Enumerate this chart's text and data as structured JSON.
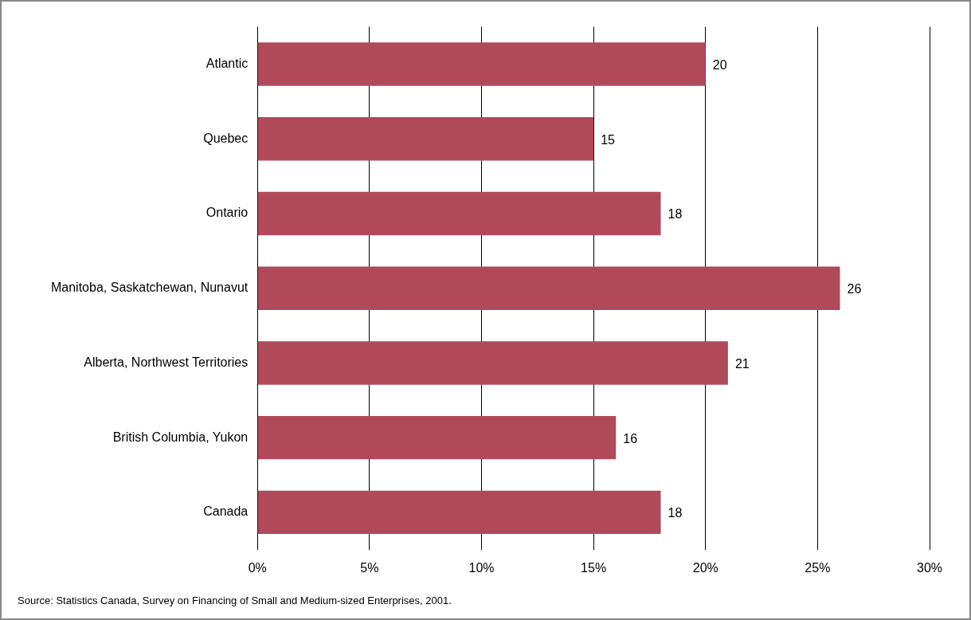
{
  "chart_data": {
    "type": "bar",
    "orientation": "horizontal",
    "categories": [
      "Atlantic",
      "Quebec",
      "Ontario",
      "Manitoba, Saskatchewan, Nunavut",
      "Alberta, Northwest Territories",
      "British Columbia, Yukon",
      "Canada"
    ],
    "values": [
      20,
      15,
      18,
      26,
      21,
      16,
      18
    ],
    "color": "#b04a5a",
    "xlim": [
      0,
      30
    ],
    "xticks": [
      {
        "value": 0,
        "label": "0%"
      },
      {
        "value": 5,
        "label": "5%"
      },
      {
        "value": 10,
        "label": "10%"
      },
      {
        "value": 15,
        "label": "15%"
      },
      {
        "value": 20,
        "label": "20%"
      },
      {
        "value": 25,
        "label": "25%"
      },
      {
        "value": 30,
        "label": "30%"
      }
    ],
    "grid": "x",
    "legend": false,
    "data_labels": true,
    "annotations": [
      "Source: Statistics Canada, Survey on Financing of Small and Medium-sized Enterprises, 2001."
    ]
  }
}
